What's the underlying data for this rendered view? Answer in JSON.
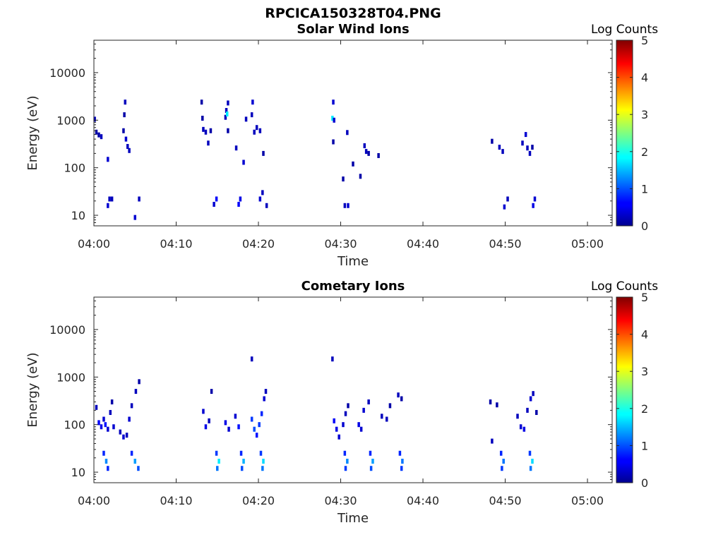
{
  "figure": {
    "filename_title": "RPCICA150328T04.PNG"
  },
  "chart_data": [
    {
      "type": "heatmap",
      "title": "Solar Wind Ions",
      "xlabel": "Time",
      "ylabel": "Energy (eV)",
      "y_scale": "log",
      "ylim": [
        6,
        48000
      ],
      "x_ticks": [
        "04:00",
        "04:10",
        "04:20",
        "04:30",
        "04:40",
        "04:50",
        "05:00"
      ],
      "xlim_minutes": [
        0,
        63
      ],
      "y_ticks": [
        {
          "value": 10,
          "label": "10"
        },
        {
          "value": 100,
          "label": "100"
        },
        {
          "value": 1000,
          "label": "1000"
        },
        {
          "value": 10000,
          "label": "10000"
        }
      ],
      "colorbar": {
        "label": "Log Counts",
        "range": [
          0,
          5
        ],
        "ticks": [
          "0",
          "1",
          "2",
          "3",
          "4",
          "5"
        ],
        "colormap": "jet"
      },
      "cells": [
        [
          0.1,
          1050,
          0.3
        ],
        [
          0.3,
          560,
          0.2
        ],
        [
          0.6,
          490,
          0.2
        ],
        [
          0.9,
          450,
          0.3
        ],
        [
          1.7,
          150,
          0.4
        ],
        [
          1.9,
          22,
          0.3
        ],
        [
          1.7,
          16,
          0.4
        ],
        [
          2.2,
          22,
          0.3
        ],
        [
          3.6,
          600,
          0.2
        ],
        [
          3.7,
          1300,
          0.2
        ],
        [
          3.8,
          2400,
          0.3
        ],
        [
          3.9,
          400,
          0.4
        ],
        [
          4.1,
          280,
          0.3
        ],
        [
          4.3,
          230,
          0.3
        ],
        [
          5.0,
          9,
          0.4
        ],
        [
          5.5,
          22,
          0.3
        ],
        [
          13.1,
          2400,
          0.2
        ],
        [
          13.2,
          1100,
          0.2
        ],
        [
          13.3,
          640,
          0.3
        ],
        [
          13.6,
          560,
          0.3
        ],
        [
          13.9,
          330,
          0.3
        ],
        [
          14.2,
          600,
          0.2
        ],
        [
          14.6,
          17,
          0.4
        ],
        [
          14.9,
          22,
          0.6
        ],
        [
          16.0,
          1150,
          0.3
        ],
        [
          16.1,
          1600,
          0.3
        ],
        [
          16.2,
          1350,
          1.8
        ],
        [
          16.3,
          2300,
          0.3
        ],
        [
          16.3,
          600,
          0.2
        ],
        [
          17.3,
          260,
          0.3
        ],
        [
          17.6,
          17,
          0.6
        ],
        [
          17.8,
          22,
          0.5
        ],
        [
          18.2,
          130,
          0.4
        ],
        [
          18.5,
          1050,
          0.3
        ],
        [
          19.2,
          1300,
          0.3
        ],
        [
          19.3,
          2400,
          0.4
        ],
        [
          19.5,
          560,
          0.3
        ],
        [
          19.8,
          700,
          0.3
        ],
        [
          20.2,
          600,
          0.3
        ],
        [
          20.6,
          200,
          0.2
        ],
        [
          20.2,
          22,
          0.4
        ],
        [
          20.5,
          30,
          0.3
        ],
        [
          21.0,
          16,
          0.3
        ],
        [
          29.0,
          1100,
          1.8
        ],
        [
          29.1,
          2400,
          0.4
        ],
        [
          29.2,
          1000,
          0.4
        ],
        [
          29.1,
          350,
          0.2
        ],
        [
          30.3,
          58,
          0.2
        ],
        [
          30.5,
          16,
          0.3
        ],
        [
          30.9,
          16,
          0.4
        ],
        [
          30.8,
          550,
          0.3
        ],
        [
          31.5,
          120,
          0.2
        ],
        [
          32.4,
          66,
          0.2
        ],
        [
          32.9,
          290,
          0.3
        ],
        [
          33.1,
          220,
          0.3
        ],
        [
          33.4,
          200,
          0.2
        ],
        [
          34.6,
          180,
          0.2
        ],
        [
          48.4,
          360,
          0.2
        ],
        [
          49.3,
          270,
          0.3
        ],
        [
          49.7,
          220,
          0.3
        ],
        [
          49.9,
          15,
          0.4
        ],
        [
          50.3,
          22,
          0.3
        ],
        [
          52.1,
          330,
          0.3
        ],
        [
          52.5,
          500,
          0.4
        ],
        [
          52.7,
          260,
          0.3
        ],
        [
          53.0,
          200,
          0.3
        ],
        [
          53.3,
          270,
          0.2
        ],
        [
          53.4,
          16,
          0.5
        ],
        [
          53.6,
          22,
          0.4
        ]
      ]
    },
    {
      "type": "heatmap",
      "title": "Cometary Ions",
      "xlabel": "Time",
      "ylabel": "Energy (eV)",
      "y_scale": "log",
      "ylim": [
        6,
        48000
      ],
      "x_ticks": [
        "04:00",
        "04:10",
        "04:20",
        "04:30",
        "04:40",
        "04:50",
        "05:00"
      ],
      "xlim_minutes": [
        0,
        63
      ],
      "y_ticks": [
        {
          "value": 10,
          "label": "10"
        },
        {
          "value": 100,
          "label": "100"
        },
        {
          "value": 1000,
          "label": "1000"
        },
        {
          "value": 10000,
          "label": "10000"
        }
      ],
      "colorbar": {
        "label": "Log Counts",
        "range": [
          0,
          5
        ],
        "ticks": [
          "0",
          "1",
          "2",
          "3",
          "4",
          "5"
        ],
        "colormap": "jet"
      },
      "cells": [
        [
          0.3,
          230,
          0.3
        ],
        [
          0.6,
          110,
          0.6
        ],
        [
          0.9,
          90,
          0.5
        ],
        [
          1.2,
          130,
          0.4
        ],
        [
          1.4,
          100,
          0.7
        ],
        [
          1.7,
          80,
          0.4
        ],
        [
          2.0,
          180,
          0.3
        ],
        [
          2.2,
          300,
          0.2
        ],
        [
          2.4,
          90,
          0.4
        ],
        [
          3.2,
          70,
          0.3
        ],
        [
          3.6,
          55,
          0.4
        ],
        [
          4.0,
          60,
          0.3
        ],
        [
          4.3,
          130,
          0.4
        ],
        [
          4.6,
          250,
          0.3
        ],
        [
          5.1,
          500,
          0.3
        ],
        [
          5.5,
          800,
          0.2
        ],
        [
          1.2,
          25,
          0.8
        ],
        [
          1.5,
          17,
          1.3
        ],
        [
          1.7,
          12,
          0.8
        ],
        [
          4.6,
          25,
          0.8
        ],
        [
          5.0,
          17,
          1.4
        ],
        [
          5.4,
          12,
          1.0
        ],
        [
          13.3,
          190,
          0.4
        ],
        [
          13.6,
          90,
          0.5
        ],
        [
          14.0,
          120,
          0.3
        ],
        [
          14.3,
          500,
          0.2
        ],
        [
          14.9,
          25,
          0.9
        ],
        [
          15.2,
          17,
          1.8
        ],
        [
          15.0,
          12,
          1.2
        ],
        [
          16.0,
          110,
          0.5
        ],
        [
          16.4,
          80,
          0.4
        ],
        [
          17.2,
          150,
          0.4
        ],
        [
          17.6,
          90,
          0.7
        ],
        [
          17.9,
          25,
          0.8
        ],
        [
          18.2,
          17,
          1.5
        ],
        [
          18.0,
          12,
          1.0
        ],
        [
          19.2,
          130,
          0.9
        ],
        [
          19.5,
          80,
          1.0
        ],
        [
          19.8,
          60,
          0.7
        ],
        [
          20.1,
          100,
          0.9
        ],
        [
          20.4,
          170,
          0.8
        ],
        [
          20.7,
          350,
          0.4
        ],
        [
          20.9,
          500,
          0.3
        ],
        [
          20.3,
          25,
          0.9
        ],
        [
          20.6,
          17,
          1.7
        ],
        [
          20.5,
          12,
          1.2
        ],
        [
          19.2,
          2400,
          0.3
        ],
        [
          29.0,
          2400,
          0.3
        ],
        [
          29.2,
          120,
          0.6
        ],
        [
          29.5,
          80,
          0.5
        ],
        [
          29.8,
          55,
          0.4
        ],
        [
          30.3,
          100,
          0.4
        ],
        [
          30.6,
          170,
          0.3
        ],
        [
          30.9,
          250,
          0.2
        ],
        [
          30.5,
          25,
          0.8
        ],
        [
          30.8,
          17,
          1.3
        ],
        [
          30.6,
          12,
          0.9
        ],
        [
          32.2,
          100,
          0.5
        ],
        [
          32.5,
          80,
          0.4
        ],
        [
          32.8,
          200,
          0.4
        ],
        [
          33.4,
          300,
          0.3
        ],
        [
          33.6,
          25,
          0.8
        ],
        [
          33.9,
          17,
          1.4
        ],
        [
          33.7,
          12,
          1.0
        ],
        [
          35.0,
          150,
          0.3
        ],
        [
          35.6,
          130,
          0.3
        ],
        [
          36.0,
          250,
          0.2
        ],
        [
          37.2,
          25,
          0.8
        ],
        [
          37.5,
          17,
          1.2
        ],
        [
          37.4,
          12,
          0.9
        ],
        [
          37.0,
          420,
          0.3
        ],
        [
          37.4,
          350,
          0.2
        ],
        [
          48.2,
          300,
          0.2
        ],
        [
          48.4,
          45,
          0.3
        ],
        [
          49.0,
          260,
          0.2
        ],
        [
          49.5,
          25,
          0.8
        ],
        [
          49.8,
          17,
          1.2
        ],
        [
          49.6,
          12,
          0.9
        ],
        [
          51.5,
          150,
          0.3
        ],
        [
          51.9,
          90,
          0.4
        ],
        [
          52.3,
          80,
          0.5
        ],
        [
          52.7,
          200,
          0.3
        ],
        [
          53.1,
          350,
          0.4
        ],
        [
          53.4,
          450,
          0.3
        ],
        [
          53.0,
          25,
          0.9
        ],
        [
          53.3,
          17,
          1.7
        ],
        [
          53.1,
          12,
          1.2
        ],
        [
          53.8,
          180,
          0.2
        ]
      ]
    }
  ]
}
